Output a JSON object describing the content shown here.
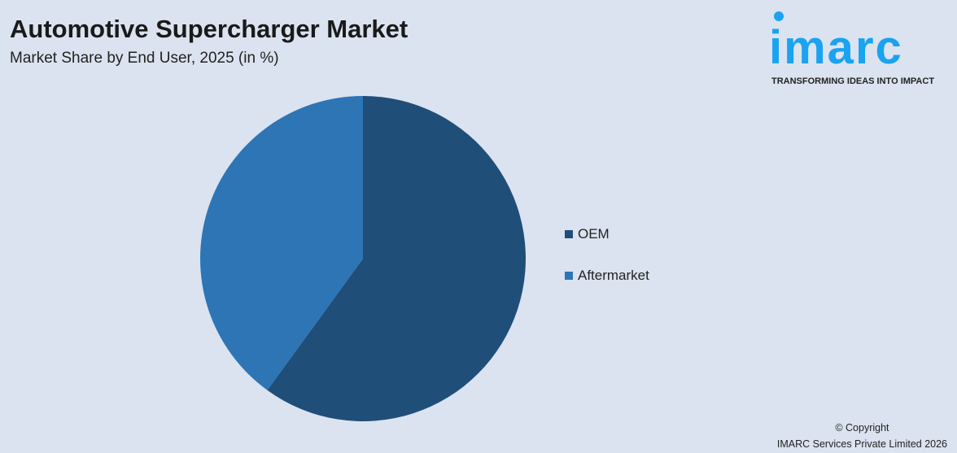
{
  "header": {
    "title": "Automotive Supercharger Market",
    "subtitle": "Market Share by End User, 2025 (in %)"
  },
  "logo": {
    "text": "imarc",
    "tagline": "TRANSFORMING IDEAS INTO IMPACT",
    "color": "#1aa3f0"
  },
  "chart_data": {
    "type": "pie",
    "title": "Automotive Supercharger Market",
    "subtitle": "Market Share by End User, 2025 (in %)",
    "categories": [
      "OEM",
      "Aftermarket"
    ],
    "values": [
      60,
      40
    ],
    "colors": [
      "#1f4e79",
      "#2e75b6"
    ],
    "start_angle": "top, clockwise",
    "legend": "right"
  },
  "footer": {
    "copyright": "© Copyright",
    "company": "IMARC Services Private Limited 2026"
  }
}
